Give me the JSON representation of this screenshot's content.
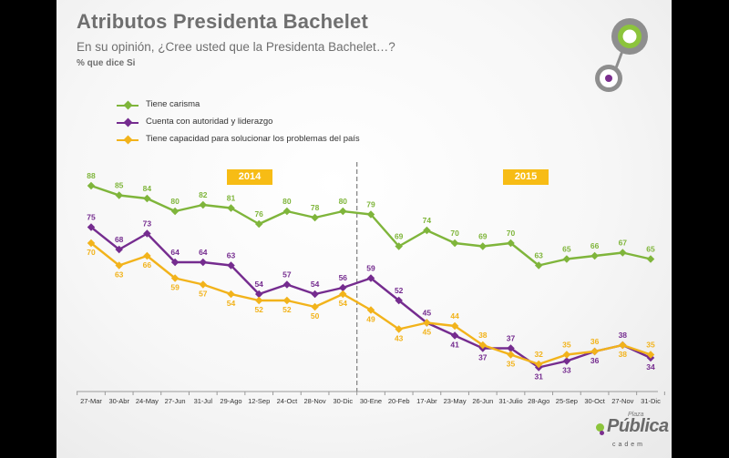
{
  "header": {
    "title": "Atributos Presidenta Bachelet",
    "subtitle": "En su opinión, ¿Cree usted que la Presidenta Bachelet…?",
    "note": "% que dice Si"
  },
  "year_labels": [
    "2014",
    "2015"
  ],
  "logo": {
    "small": "Plaza",
    "main": "Pública",
    "sub": "cadem"
  },
  "colors": {
    "green": "#7fb53b",
    "purple": "#752c8f",
    "yellow": "#f2b31b",
    "divider": "#888888"
  },
  "chart_data": {
    "type": "line",
    "title": "Atributos Presidenta Bachelet",
    "categories": [
      "27-Mar",
      "30-Abr",
      "24-May",
      "27-Jun",
      "31-Jul",
      "29-Ago",
      "12-Sep",
      "24-Oct",
      "28-Nov",
      "30-Dic",
      "30-Ene",
      "20-Feb",
      "17-Abr",
      "23-May",
      "26-Jun",
      "31-Julio",
      "28-Ago",
      "25-Sep",
      "30-Oct",
      "27-Nov",
      "31-Dic"
    ],
    "series": [
      {
        "name": "Tiene carisma",
        "color": "#7fb53b",
        "values": [
          88,
          85,
          84,
          80,
          82,
          81,
          76,
          80,
          78,
          80,
          79,
          69,
          74,
          70,
          69,
          70,
          63,
          65,
          66,
          67,
          65
        ]
      },
      {
        "name": "Cuenta con autoridad y liderazgo",
        "color": "#752c8f",
        "values": [
          75,
          68,
          73,
          64,
          64,
          63,
          54,
          57,
          54,
          56,
          59,
          52,
          45,
          41,
          37,
          37,
          31,
          33,
          36,
          38,
          34
        ]
      },
      {
        "name": "Tiene capacidad para solucionar los problemas del país",
        "color": "#f2b31b",
        "values": [
          70,
          63,
          66,
          59,
          57,
          54,
          52,
          52,
          50,
          54,
          49,
          43,
          45,
          44,
          38,
          35,
          32,
          35,
          36,
          38,
          35
        ]
      }
    ],
    "ylim": [
      25,
      95
    ],
    "legend": "top-left",
    "grid": false,
    "year_split_after_index": 9
  }
}
